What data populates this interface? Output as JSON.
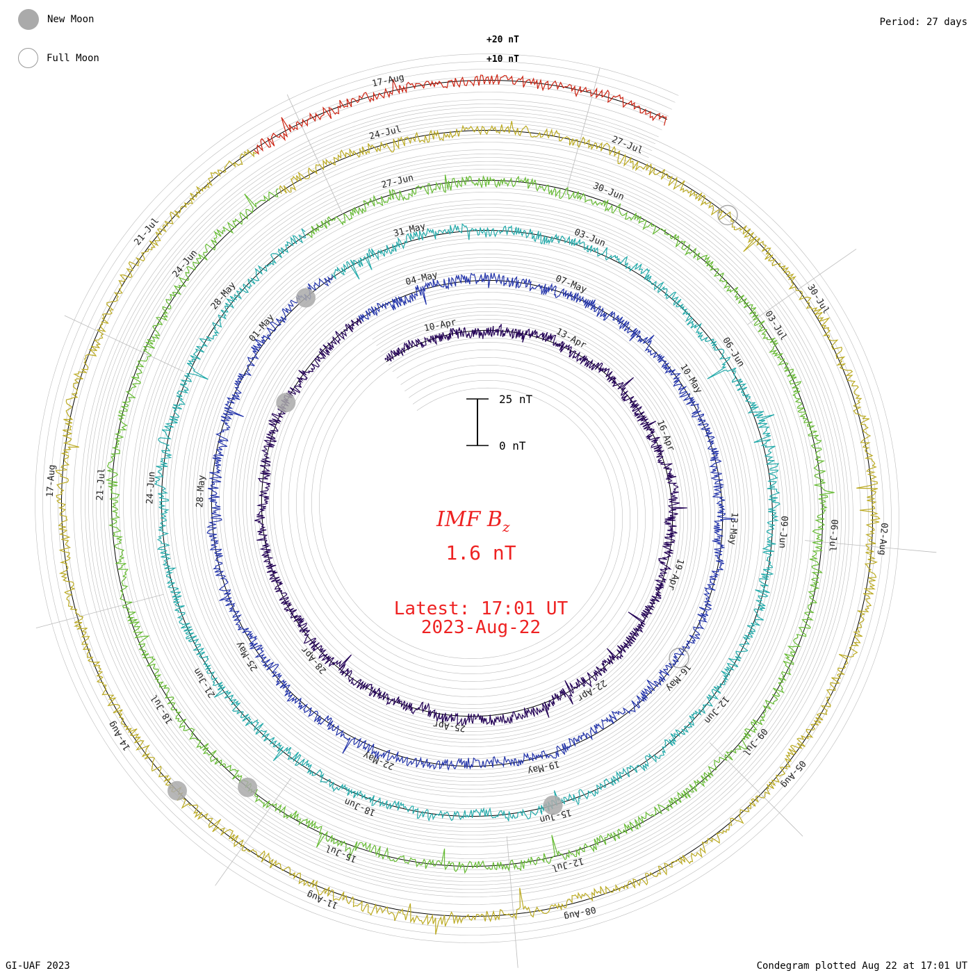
{
  "legend": {
    "new_moon": "New Moon",
    "full_moon": "Full Moon"
  },
  "period_label": "Period: 27 days",
  "footer": {
    "left": "GI-UAF 2023",
    "right": "Condegram plotted Aug 22 at 17:01 UT"
  },
  "colors": {
    "accent": "#ee2222",
    "grid": "#bbbbbb",
    "moon": "#aaaaaa"
  },
  "chart_data": {
    "type": "condegram",
    "title": "IMF Bz",
    "title_main": "IMF B",
    "title_sub": "z",
    "current_value": "1.6 nT",
    "latest_label": "Latest: 17:01 UT",
    "latest_date": "2023-Aug-22",
    "period_days": 27,
    "scale": {
      "top": "25 nT",
      "bottom": "0 nT"
    },
    "outer_labels": [
      "+20 nT",
      "+10 nT"
    ],
    "series": [
      {
        "name": "rotation-1",
        "color": "#220055",
        "start": "10-Apr",
        "labels": [
          "10-Apr",
          "13-Apr",
          "16-Apr",
          "19-Apr",
          "22-Apr",
          "25-Apr",
          "28-Apr"
        ]
      },
      {
        "name": "rotation-2",
        "color": "#2233aa",
        "start": "04-May",
        "labels": [
          "04-May",
          "07-May",
          "10-May",
          "13-May",
          "16-May",
          "19-May",
          "22-May",
          "25-May",
          "28-May",
          "01-May"
        ]
      },
      {
        "name": "rotation-3",
        "color": "#22aaaa",
        "start": "31-May",
        "labels": [
          "31-May",
          "03-Jun",
          "06-Jun",
          "09-Jun",
          "12-Jun",
          "15-Jun",
          "18-Jun",
          "21-Jun",
          "24-Jun",
          "28-May"
        ]
      },
      {
        "name": "rotation-4",
        "color": "#66bb33",
        "start": "27-Jun",
        "labels": [
          "27-Jun",
          "30-Jun",
          "03-Jul",
          "06-Jul",
          "09-Jul",
          "12-Jul",
          "15-Jul",
          "18-Jul",
          "21-Jul",
          "24-Jun"
        ]
      },
      {
        "name": "rotation-5",
        "color": "#bbaa22",
        "start": "24-Jul",
        "labels": [
          "24-Jul",
          "27-Jul",
          "30-Jul",
          "02-Aug",
          "05-Aug",
          "08-Aug",
          "11-Aug",
          "14-Aug",
          "17-Aug",
          "21-Jul"
        ]
      },
      {
        "name": "rotation-6",
        "color": "#cc2211",
        "start": "17-Aug",
        "labels": [
          "17-Aug"
        ]
      }
    ]
  }
}
